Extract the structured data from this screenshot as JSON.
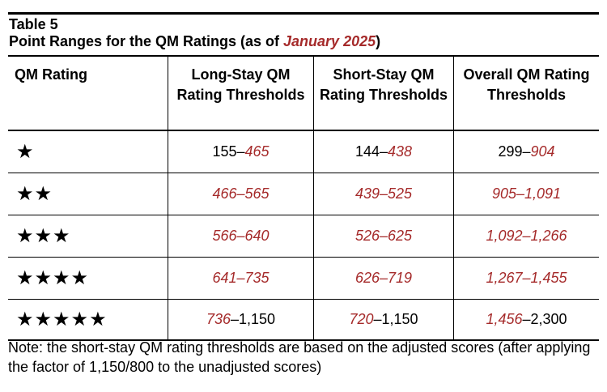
{
  "caption": {
    "table_label": "Table 5",
    "title_prefix": "Point Ranges for the QM Ratings (as of ",
    "title_date": "January 2025",
    "title_suffix": ")"
  },
  "headers": {
    "rating": "QM Rating",
    "long_stay": "Long-Stay QM Rating Thresholds",
    "short_stay": "Short-Stay QM Rating Thresholds",
    "overall": "Overall QM Rating Thresholds"
  },
  "rows": [
    {
      "stars": "★",
      "long": {
        "a": "155",
        "sep": "–",
        "b": "465",
        "a_red": false,
        "b_red": true
      },
      "short": {
        "a": "144",
        "sep": "–",
        "b": "438",
        "a_red": false,
        "b_red": true
      },
      "overall": {
        "a": "299",
        "sep": "–",
        "b": "904",
        "a_red": false,
        "b_red": true
      }
    },
    {
      "stars": "★★",
      "long": {
        "a": "466",
        "sep": "–",
        "b": "565",
        "a_red": true,
        "b_red": true
      },
      "short": {
        "a": "439",
        "sep": "–",
        "b": "525",
        "a_red": true,
        "b_red": true
      },
      "overall": {
        "a": "905",
        "sep": "–",
        "b": "1,091",
        "a_red": true,
        "b_red": true
      }
    },
    {
      "stars": "★★★",
      "long": {
        "a": "566",
        "sep": "–",
        "b": "640",
        "a_red": true,
        "b_red": true
      },
      "short": {
        "a": "526",
        "sep": "–",
        "b": "625",
        "a_red": true,
        "b_red": true
      },
      "overall": {
        "a": "1,092",
        "sep": "–",
        "b": "1,266",
        "a_red": true,
        "b_red": true
      }
    },
    {
      "stars": "★★★★",
      "long": {
        "a": "641",
        "sep": "–",
        "b": "735",
        "a_red": true,
        "b_red": true
      },
      "short": {
        "a": "626",
        "sep": "–",
        "b": "719",
        "a_red": true,
        "b_red": true
      },
      "overall": {
        "a": "1,267",
        "sep": "–",
        "b": "1,455",
        "a_red": true,
        "b_red": true
      }
    },
    {
      "stars": "★★★★★",
      "long": {
        "a": "736",
        "sep": "–",
        "b": "1,150",
        "a_red": true,
        "b_red": false
      },
      "short": {
        "a": "720",
        "sep": "–",
        "b": "1,150",
        "a_red": true,
        "b_red": false
      },
      "overall": {
        "a": "1,456",
        "sep": "–",
        "b": "2,300",
        "a_red": true,
        "b_red": false
      }
    }
  ],
  "note": "Note: the short-stay QM rating thresholds are based on the adjusted scores (after applying the factor of 1,150/800 to the unadjusted scores)",
  "colors": {
    "highlight": "#a52a2a"
  }
}
